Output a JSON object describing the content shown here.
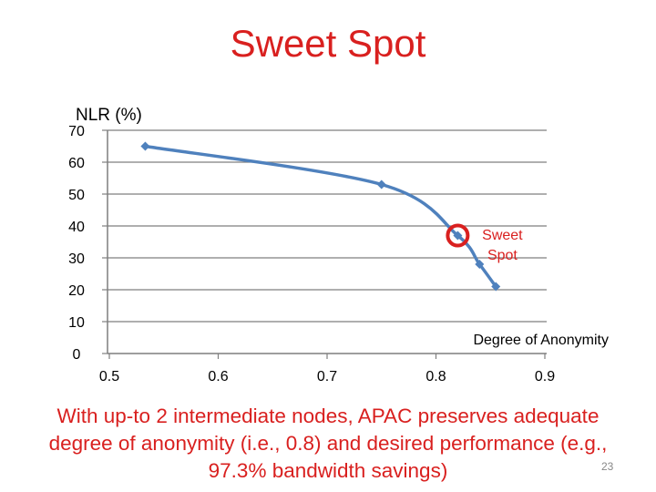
{
  "slide": {
    "title": "Sweet Spot",
    "caption_lines": [
      "With up-to 2 intermediate nodes, APAC preserves adequate",
      "degree of anonymity (i.e., 0.8) and desired performance (e.g.,",
      "97.3% bandwidth savings)"
    ],
    "slide_number": "23"
  },
  "chart_data": {
    "type": "line",
    "title": "",
    "ylabel": "NLR (%)",
    "xlabel": "Degree of Anonymity",
    "xlim": [
      0.5,
      0.9
    ],
    "ylim": [
      0,
      70
    ],
    "xticks": [
      "0.5",
      "0.6",
      "0.7",
      "0.8",
      "0.9"
    ],
    "yticks": [
      "0",
      "10",
      "20",
      "30",
      "40",
      "50",
      "60",
      "70"
    ],
    "grid": true,
    "series": [
      {
        "x": [
          0.533,
          0.75,
          0.82,
          0.84,
          0.855
        ],
        "y": [
          65,
          53,
          37,
          28,
          21
        ]
      }
    ],
    "annotation": {
      "lines": [
        "Sweet",
        "Spot"
      ],
      "x": 0.82,
      "y": 37
    },
    "colors": {
      "line": "#4f81bd",
      "grid": "#7f7f7f",
      "annotation": "#d9201f"
    }
  }
}
